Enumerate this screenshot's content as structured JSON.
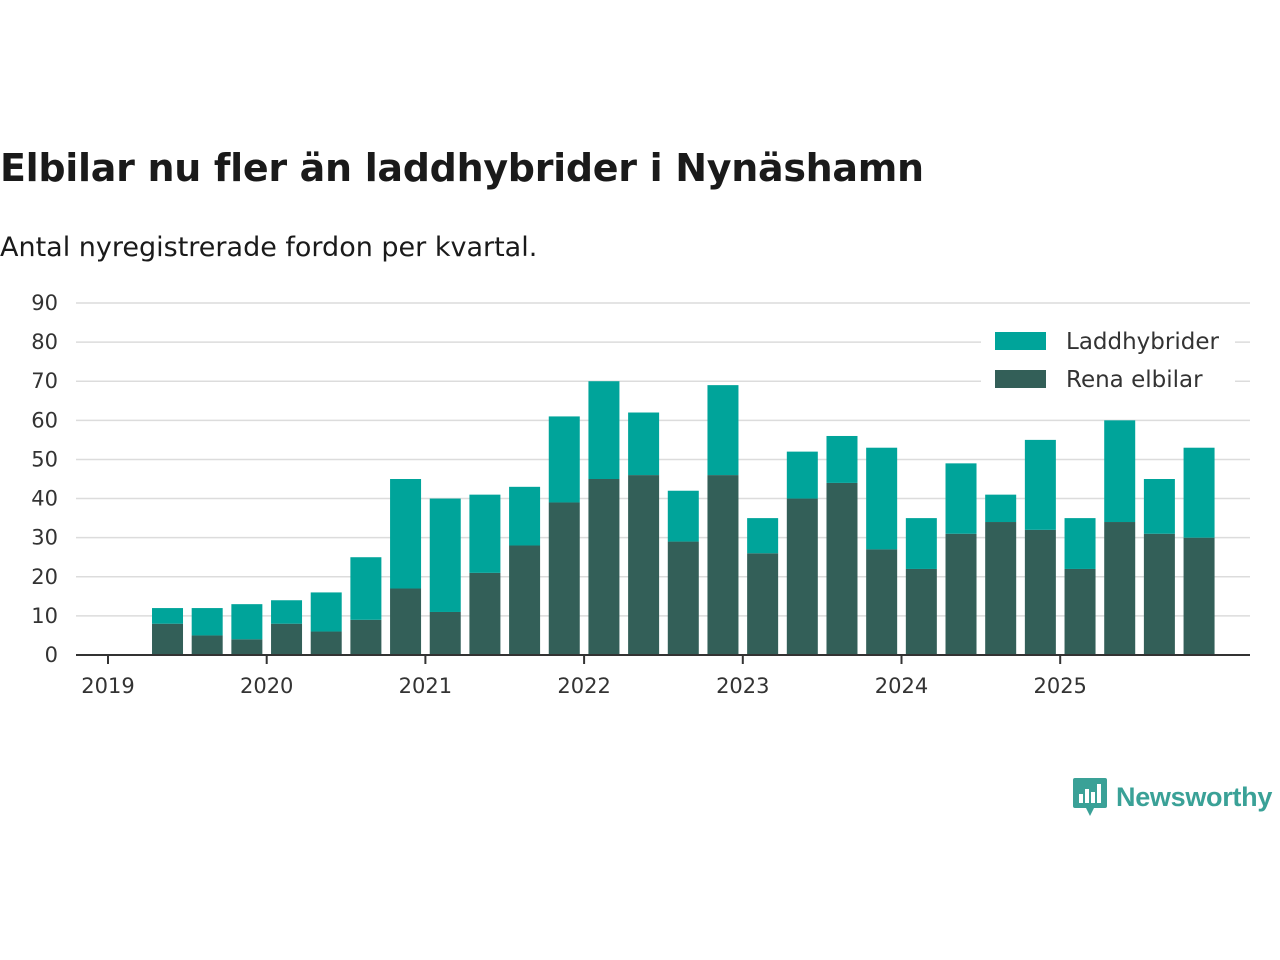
{
  "title": "Elbilar nu fler än laddhybrider i Nynäshamn",
  "subtitle": "Antal nyregistrerade fordon per kvartal.",
  "brand": {
    "name": "Newsworthy",
    "icon": "newsworthy-logo-icon",
    "color": "#3aa197"
  },
  "chart_data": {
    "type": "bar",
    "stacked": true,
    "title": "Elbilar nu fler än laddhybrider i Nynäshamn",
    "subtitle": "Antal nyregistrerade fordon per kvartal.",
    "xlabel": "",
    "ylabel": "",
    "ylim": [
      0,
      90
    ],
    "yticks": [
      0,
      10,
      20,
      30,
      40,
      50,
      60,
      70,
      80,
      90
    ],
    "year_ticks": [
      "2019",
      "2020",
      "2021",
      "2022",
      "2023",
      "2024",
      "2025"
    ],
    "grid": true,
    "legend_position": "top-right",
    "categories": [
      "2019 Q2",
      "2019 Q3",
      "2019 Q4",
      "2020 Q1",
      "2020 Q2",
      "2020 Q3",
      "2020 Q4",
      "2021 Q1",
      "2021 Q2",
      "2021 Q3",
      "2021 Q4",
      "2022 Q1",
      "2022 Q2",
      "2022 Q3",
      "2022 Q4",
      "2023 Q1",
      "2023 Q2",
      "2023 Q3",
      "2023 Q4",
      "2024 Q1",
      "2024 Q2",
      "2024 Q3",
      "2024 Q4",
      "2025 Q1",
      "2025 Q2",
      "2025 Q3",
      "2025 Q4"
    ],
    "series": [
      {
        "name": "Rena elbilar",
        "color": "#335f58",
        "values": [
          8,
          5,
          4,
          8,
          6,
          9,
          17,
          11,
          21,
          28,
          39,
          45,
          46,
          29,
          46,
          26,
          40,
          44,
          27,
          22,
          31,
          34,
          32,
          22,
          34,
          31,
          30
        ]
      },
      {
        "name": "Laddhybrider",
        "color": "#00a49a",
        "values": [
          4,
          7,
          9,
          6,
          10,
          16,
          28,
          29,
          20,
          15,
          22,
          25,
          16,
          13,
          23,
          9,
          12,
          12,
          26,
          13,
          18,
          7,
          23,
          13,
          26,
          14,
          23
        ]
      }
    ]
  }
}
